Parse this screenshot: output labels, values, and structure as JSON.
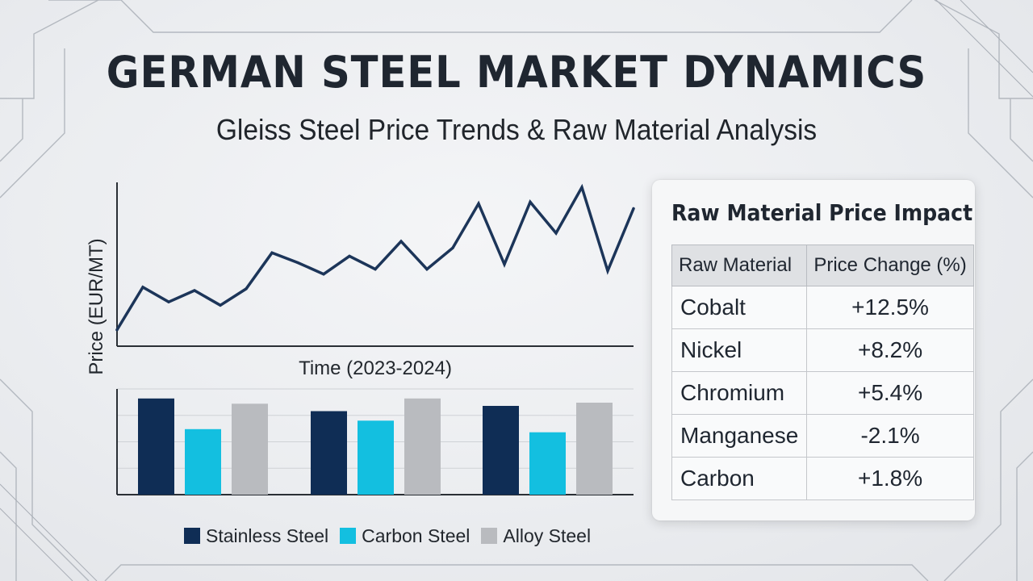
{
  "header": {
    "title": "GERMAN STEEL MARKET DYNAMICS",
    "subtitle": "Gleiss Steel Price Trends & Raw Material Analysis"
  },
  "colors": {
    "line": "#1c3559",
    "stainless": "#0f2d55",
    "carbon": "#13bfe0",
    "alloy": "#b9bbbf",
    "text": "#1f2630"
  },
  "chart_data": [
    {
      "type": "line",
      "xlabel": "Time (2023-2024)",
      "ylabel": "Price (EUR/MT)",
      "ylim": [
        0,
        100
      ],
      "grid": false,
      "series": [
        {
          "values": [
            10,
            36,
            27,
            34,
            25,
            35,
            57,
            51,
            44,
            55,
            47,
            64,
            47,
            60,
            87,
            50,
            88,
            69,
            97,
            46,
            84
          ]
        }
      ]
    },
    {
      "type": "bar",
      "categories": [
        "",
        "",
        ""
      ],
      "ylim": [
        0,
        100
      ],
      "grid": true,
      "legend_position": "bottom",
      "series": [
        {
          "name": "Stainless Steel",
          "values": [
            91,
            79,
            84
          ]
        },
        {
          "name": "Carbon Steel",
          "values": [
            62,
            70,
            59
          ]
        },
        {
          "name": "Alloy Steel",
          "values": [
            86,
            91,
            87
          ]
        }
      ]
    }
  ],
  "table": {
    "title": "Raw Material Price Impact",
    "headers": [
      "Raw Material",
      "Price Change (%)"
    ],
    "rows": [
      {
        "material": "Cobalt",
        "change": "+12.5%"
      },
      {
        "material": "Nickel",
        "change": "+8.2%"
      },
      {
        "material": "Chromium",
        "change": "+5.4%"
      },
      {
        "material": "Manganese",
        "change": "-2.1%"
      },
      {
        "material": "Carbon",
        "change": "+1.8%"
      }
    ]
  }
}
